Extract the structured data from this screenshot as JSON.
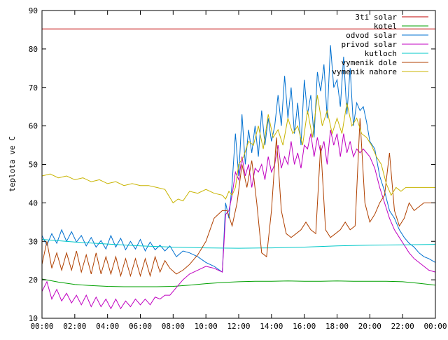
{
  "chart_data": {
    "type": "line",
    "title": "",
    "xlabel": "",
    "ylabel": "teplota ve C",
    "ylim": [
      10,
      90
    ],
    "yticks": [
      10,
      20,
      30,
      40,
      50,
      60,
      70,
      80,
      90
    ],
    "xlim": [
      0,
      24
    ],
    "xtick_hours": [
      0,
      2,
      4,
      6,
      8,
      10,
      12,
      14,
      16,
      18,
      20,
      22,
      24
    ],
    "xtick_labels": [
      "00:00",
      "02:00",
      "04:00",
      "06:00",
      "08:00",
      "10:00",
      "12:00",
      "14:00",
      "16:00",
      "18:00",
      "20:00",
      "22:00",
      "00:00"
    ],
    "grid": false,
    "legend_position": "top-right",
    "series": [
      {
        "name": "3ti solar",
        "color": "#c00000",
        "x": [
          0,
          24
        ],
        "y": [
          85.2,
          85.2
        ]
      },
      {
        "name": "kotel",
        "color": "#00a000",
        "x": [
          0,
          1,
          2,
          3,
          4,
          5,
          6,
          7,
          8,
          9,
          10,
          11,
          12,
          13,
          14,
          15,
          16,
          17,
          18,
          19,
          20,
          21,
          22,
          23,
          24
        ],
        "y": [
          20.2,
          19.4,
          18.8,
          18.5,
          18.3,
          18.2,
          18.2,
          18.2,
          18.3,
          18.6,
          19.0,
          19.3,
          19.5,
          19.6,
          19.6,
          19.7,
          19.6,
          19.6,
          19.7,
          19.6,
          19.6,
          19.6,
          19.5,
          19.1,
          18.6
        ]
      },
      {
        "name": "odvod solar",
        "color": "#0070d0",
        "x": [
          0,
          0.3,
          0.6,
          0.9,
          1.2,
          1.5,
          1.8,
          2.1,
          2.4,
          2.7,
          3.0,
          3.3,
          3.6,
          3.9,
          4.2,
          4.5,
          4.8,
          5.1,
          5.4,
          5.7,
          6.0,
          6.3,
          6.6,
          6.9,
          7.2,
          7.5,
          7.8,
          8.2,
          8.6,
          9.0,
          9.5,
          10.0,
          10.5,
          11.0,
          11.2,
          11.4,
          11.6,
          11.8,
          12.0,
          12.2,
          12.4,
          12.6,
          12.8,
          13.0,
          13.2,
          13.4,
          13.6,
          13.8,
          14.0,
          14.2,
          14.4,
          14.6,
          14.8,
          15.0,
          15.2,
          15.4,
          15.6,
          15.8,
          16.0,
          16.2,
          16.4,
          16.6,
          16.8,
          17.0,
          17.2,
          17.4,
          17.6,
          17.8,
          18.0,
          18.2,
          18.4,
          18.6,
          18.8,
          19.0,
          19.2,
          19.4,
          19.6,
          19.8,
          20.0,
          20.3,
          20.6,
          20.9,
          21.2,
          21.5,
          21.8,
          22.1,
          22.4,
          22.7,
          23.0,
          23.3,
          23.6,
          24.0
        ],
        "y": [
          31.5,
          29.0,
          32.0,
          29.5,
          33.0,
          30.0,
          32.5,
          29.8,
          31.5,
          28.8,
          31.0,
          28.5,
          30.2,
          28.0,
          31.5,
          28.5,
          30.8,
          27.8,
          30.0,
          28.0,
          30.5,
          27.5,
          29.8,
          27.8,
          29.0,
          27.5,
          28.8,
          26.0,
          27.5,
          27.0,
          26.0,
          24.5,
          23.5,
          22.0,
          40.0,
          36.0,
          45.0,
          58.0,
          47.0,
          63.0,
          50.0,
          59.0,
          53.0,
          60.0,
          52.0,
          64.0,
          55.0,
          62.0,
          56.0,
          60.0,
          68.0,
          60.0,
          73.0,
          62.0,
          70.0,
          58.0,
          66.0,
          55.0,
          72.0,
          63.0,
          68.0,
          57.0,
          74.0,
          69.0,
          76.0,
          62.0,
          81.0,
          70.0,
          72.0,
          65.0,
          78.0,
          63.0,
          75.0,
          60.0,
          66.0,
          64.0,
          65.0,
          61.0,
          56.0,
          54.0,
          47.0,
          43.0,
          38.0,
          36.0,
          33.0,
          31.0,
          29.5,
          28.5,
          27.0,
          26.0,
          25.5,
          24.5
        ]
      },
      {
        "name": "privod solar",
        "color": "#c000c0",
        "x": [
          0,
          0.3,
          0.6,
          0.9,
          1.2,
          1.5,
          1.8,
          2.1,
          2.4,
          2.7,
          3.0,
          3.3,
          3.6,
          3.9,
          4.2,
          4.5,
          4.8,
          5.1,
          5.4,
          5.7,
          6.0,
          6.3,
          6.6,
          6.9,
          7.2,
          7.5,
          7.8,
          8.2,
          8.6,
          9.0,
          9.5,
          10.0,
          10.5,
          11.0,
          11.2,
          11.4,
          11.6,
          11.8,
          12.0,
          12.2,
          12.4,
          12.6,
          12.8,
          13.0,
          13.2,
          13.4,
          13.6,
          13.8,
          14.0,
          14.2,
          14.4,
          14.6,
          14.8,
          15.0,
          15.2,
          15.4,
          15.6,
          15.8,
          16.0,
          16.2,
          16.4,
          16.6,
          16.8,
          17.0,
          17.2,
          17.4,
          17.6,
          17.8,
          18.0,
          18.2,
          18.4,
          18.6,
          18.8,
          19.0,
          19.2,
          19.4,
          19.6,
          19.8,
          20.0,
          20.3,
          20.6,
          20.9,
          21.2,
          21.5,
          21.8,
          22.1,
          22.4,
          22.7,
          23.0,
          23.3,
          23.6,
          24.0
        ],
        "y": [
          17.0,
          19.5,
          15.0,
          17.5,
          14.5,
          16.5,
          14.0,
          16.0,
          13.5,
          16.0,
          13.0,
          15.5,
          13.0,
          15.0,
          12.5,
          15.0,
          12.5,
          14.5,
          13.0,
          15.0,
          13.5,
          15.0,
          13.5,
          15.5,
          15.0,
          16.0,
          16.0,
          18.0,
          20.0,
          21.5,
          22.5,
          23.5,
          23.0,
          22.0,
          37.0,
          38.0,
          42.0,
          48.0,
          46.0,
          52.0,
          47.0,
          50.0,
          44.0,
          49.0,
          48.0,
          50.0,
          46.0,
          52.0,
          48.0,
          50.0,
          55.0,
          49.0,
          52.0,
          50.0,
          56.0,
          50.0,
          53.0,
          49.0,
          55.0,
          54.0,
          58.0,
          52.0,
          57.0,
          53.0,
          56.0,
          50.0,
          59.0,
          55.0,
          58.0,
          52.0,
          58.0,
          53.0,
          56.0,
          52.0,
          54.0,
          53.0,
          54.0,
          53.0,
          52.0,
          49.0,
          44.0,
          40.0,
          36.0,
          33.0,
          31.0,
          29.0,
          27.0,
          25.5,
          24.5,
          23.5,
          22.5,
          22.0
        ]
      },
      {
        "name": "kutloch",
        "color": "#00c8c8",
        "x": [
          0,
          2,
          4,
          6,
          8,
          10,
          12,
          14,
          16,
          18,
          20,
          22,
          24
        ],
        "y": [
          30.5,
          29.8,
          29.3,
          28.8,
          28.5,
          28.3,
          28.2,
          28.3,
          28.5,
          28.8,
          29.0,
          29.1,
          29.2
        ]
      },
      {
        "name": "vymenik dole",
        "color": "#b04000",
        "x": [
          0,
          0.3,
          0.6,
          0.9,
          1.2,
          1.5,
          1.8,
          2.1,
          2.4,
          2.7,
          3.0,
          3.3,
          3.6,
          3.9,
          4.2,
          4.5,
          4.8,
          5.1,
          5.4,
          5.7,
          6.0,
          6.3,
          6.6,
          6.9,
          7.2,
          7.5,
          7.8,
          8.2,
          8.6,
          9.0,
          9.5,
          10.0,
          10.5,
          11.0,
          11.3,
          11.6,
          11.9,
          12.2,
          12.5,
          12.8,
          13.1,
          13.4,
          13.7,
          14.0,
          14.3,
          14.6,
          14.9,
          15.2,
          15.5,
          15.8,
          16.1,
          16.4,
          16.7,
          17.0,
          17.3,
          17.6,
          17.9,
          18.2,
          18.5,
          18.8,
          19.1,
          19.4,
          19.7,
          20.0,
          20.3,
          20.6,
          20.9,
          21.2,
          21.5,
          21.8,
          22.1,
          22.4,
          22.7,
          23.0,
          23.3,
          23.6,
          24.0
        ],
        "y": [
          24.0,
          30.0,
          23.0,
          27.0,
          22.5,
          27.0,
          22.5,
          27.5,
          22.0,
          26.5,
          21.5,
          27.0,
          21.5,
          26.0,
          21.5,
          26.0,
          21.0,
          25.5,
          21.0,
          25.5,
          21.0,
          25.5,
          21.0,
          26.0,
          22.0,
          25.0,
          23.0,
          21.5,
          22.5,
          24.0,
          26.5,
          30.0,
          36.0,
          38.0,
          38.0,
          34.0,
          40.0,
          50.0,
          44.0,
          51.0,
          40.0,
          27.0,
          26.0,
          38.0,
          57.0,
          38.0,
          32.0,
          31.0,
          32.0,
          33.0,
          35.0,
          33.0,
          32.0,
          55.0,
          33.0,
          31.0,
          32.0,
          33.0,
          35.0,
          33.0,
          34.0,
          62.0,
          40.0,
          35.0,
          37.0,
          40.0,
          42.0,
          53.0,
          38.0,
          34.0,
          36.0,
          40.0,
          38.0,
          39.0,
          40.0,
          40.0,
          40.0
        ]
      },
      {
        "name": "vymenik nahore",
        "color": "#c8b400",
        "x": [
          0,
          0.5,
          1.0,
          1.5,
          2.0,
          2.5,
          3.0,
          3.5,
          4.0,
          4.5,
          5.0,
          5.5,
          6.0,
          6.5,
          7.0,
          7.5,
          8.0,
          8.3,
          8.6,
          9.0,
          9.5,
          10.0,
          10.5,
          11.0,
          11.2,
          11.4,
          11.6,
          11.8,
          12.0,
          12.3,
          12.6,
          12.9,
          13.2,
          13.5,
          13.8,
          14.1,
          14.4,
          14.7,
          15.0,
          15.3,
          15.6,
          15.9,
          16.2,
          16.5,
          16.8,
          17.1,
          17.4,
          17.7,
          18.0,
          18.3,
          18.6,
          18.9,
          19.2,
          19.5,
          19.8,
          20.1,
          20.4,
          20.7,
          21.0,
          21.3,
          21.6,
          21.9,
          22.2,
          22.5,
          23.0,
          23.5,
          24.0
        ],
        "y": [
          47.0,
          47.5,
          46.5,
          47.0,
          46.0,
          46.5,
          45.5,
          46.0,
          45.0,
          45.5,
          44.5,
          45.0,
          44.5,
          44.5,
          44.0,
          43.5,
          40.0,
          41.0,
          40.5,
          43.0,
          42.5,
          43.5,
          42.5,
          42.0,
          41.0,
          43.0,
          42.0,
          44.0,
          50.0,
          52.0,
          56.0,
          55.0,
          60.0,
          54.0,
          63.0,
          57.0,
          59.0,
          55.0,
          62.0,
          58.0,
          60.0,
          55.0,
          64.0,
          57.0,
          68.0,
          60.0,
          64.0,
          58.0,
          62.0,
          58.0,
          66.0,
          60.0,
          62.0,
          58.0,
          57.0,
          55.0,
          52.0,
          50.0,
          45.0,
          42.0,
          44.0,
          43.0,
          44.0,
          44.0,
          44.0,
          44.0,
          44.0
        ]
      }
    ]
  }
}
